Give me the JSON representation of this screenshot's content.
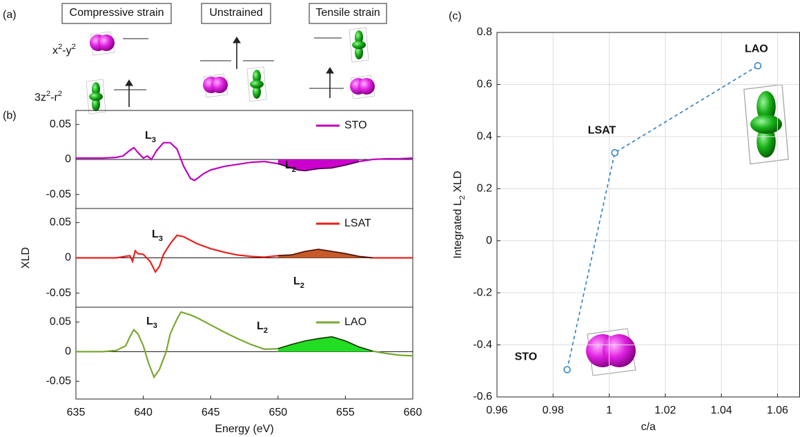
{
  "panel_labels": [
    "(a)",
    "(b)",
    "(c)"
  ],
  "schematic": {
    "boxes": [
      "Compressive strain",
      "Unstrained",
      "Tensile strain"
    ],
    "orbital_labels": [
      {
        "text": "x",
        "sup": "2",
        "tail": "-y",
        "sup2": "2"
      },
      {
        "text": "3z",
        "sup": "2",
        "tail": "-r",
        "sup2": "2"
      }
    ]
  },
  "chart_data": [
    {
      "type": "line",
      "xlim": [
        635,
        660
      ],
      "ylim": [
        -0.07,
        0.07
      ],
      "yticks": [
        -0.05,
        0,
        0.05
      ],
      "zero_line": true,
      "annotations": [
        {
          "text": "L",
          "sub": "3"
        },
        {
          "text": "L",
          "sub": "2"
        }
      ],
      "shade": {
        "xlim": [
          649.5,
          656.5
        ],
        "color": "#cc00cc"
      },
      "series": [
        {
          "name": "STO",
          "color": "#c000c0",
          "x": [
            635,
            636,
            637,
            638,
            638.5,
            639,
            639.3,
            639.6,
            640,
            640.3,
            640.6,
            641,
            641.5,
            642,
            642.5,
            643,
            643.5,
            643.8,
            644.5,
            645,
            646,
            647,
            648,
            649,
            650,
            651,
            651.5,
            652,
            653,
            654,
            655,
            656,
            657,
            658,
            659,
            660
          ],
          "values": [
            0.002,
            0.002,
            0.002,
            0.003,
            0.005,
            0.013,
            0.017,
            0.01,
            0.002,
            0.005,
            0,
            0.013,
            0.024,
            0.024,
            0.015,
            -0.01,
            -0.027,
            -0.03,
            -0.02,
            -0.015,
            -0.01,
            -0.007,
            -0.004,
            -0.003,
            -0.006,
            -0.012,
            -0.015,
            -0.016,
            -0.013,
            -0.012,
            -0.008,
            -0.003,
            0,
            0.001,
            0.001,
            0.002
          ]
        }
      ]
    },
    {
      "type": "line",
      "xlim": [
        635,
        660
      ],
      "ylim": [
        -0.07,
        0.07
      ],
      "yticks": [
        -0.05,
        0,
        0.05
      ],
      "zero_line": true,
      "ylabel": {
        "text": "XLD"
      },
      "annotations": [
        {
          "text": "L",
          "sub": "3"
        },
        {
          "text": "L",
          "sub": "2"
        }
      ],
      "shade": {
        "xlim": [
          649.5,
          657
        ],
        "color": "#c85a28"
      },
      "series": [
        {
          "name": "LSAT",
          "color": "#e8201c",
          "x": [
            635,
            638,
            639,
            639.2,
            639.4,
            639.6,
            640,
            640.5,
            640.9,
            641.2,
            641.5,
            642,
            642.5,
            643,
            643.5,
            644,
            645,
            646,
            647,
            648,
            649,
            650,
            651,
            652,
            653,
            654,
            655,
            656,
            657,
            658,
            660
          ],
          "values": [
            0,
            0,
            0.003,
            -0.005,
            0.01,
            0.006,
            0.005,
            -0.005,
            -0.02,
            -0.012,
            0.005,
            0.02,
            0.032,
            0.03,
            0.025,
            0.02,
            0.013,
            0.008,
            0.004,
            0.002,
            0.001,
            0.003,
            0.004,
            0.009,
            0.012,
            0.009,
            0.006,
            0.002,
            0,
            0,
            0
          ]
        }
      ]
    },
    {
      "type": "line",
      "xlim": [
        635,
        660
      ],
      "ylim": [
        -0.08,
        0.075
      ],
      "yticks": [
        -0.05,
        0,
        0.05
      ],
      "xticks": [
        635,
        640,
        645,
        650,
        655,
        660
      ],
      "zero_line": true,
      "xlabel": "Energy (eV)",
      "annotations": [
        {
          "text": "L",
          "sub": "3"
        },
        {
          "text": "L",
          "sub": "2"
        }
      ],
      "shade": {
        "xlim": [
          649.5,
          657
        ],
        "color": "#22dd22"
      },
      "series": [
        {
          "name": "LAO",
          "color": "#78a832",
          "x": [
            635,
            637,
            638,
            638.7,
            639,
            639.3,
            639.6,
            640,
            640.4,
            640.8,
            641.2,
            641.7,
            642,
            642.5,
            642.8,
            643.5,
            644,
            645,
            646,
            647,
            648,
            649,
            650,
            651,
            652,
            653,
            654,
            655,
            656,
            657,
            658,
            659,
            660
          ],
          "values": [
            0,
            0,
            0.002,
            0.01,
            0.025,
            0.037,
            0.03,
            0.01,
            -0.02,
            -0.043,
            -0.03,
            0,
            0.03,
            0.055,
            0.067,
            0.062,
            0.057,
            0.045,
            0.033,
            0.022,
            0.012,
            0.004,
            0.005,
            0.012,
            0.018,
            0.022,
            0.025,
            0.018,
            0.008,
            0.001,
            -0.003,
            -0.006,
            -0.007
          ]
        }
      ]
    },
    {
      "type": "line",
      "xlim": [
        0.96,
        1.0679
      ],
      "ylim": [
        -0.6,
        0.8
      ],
      "grid": true,
      "dashed": true,
      "markers": true,
      "xticks": [
        0.96,
        0.98,
        1,
        1.02,
        1.04,
        1.06
      ],
      "yticks": [
        -0.6,
        -0.4,
        -0.2,
        0,
        0.2,
        0.4,
        0.6,
        0.8
      ],
      "xlabel": "c/a",
      "ylabel": {
        "text": "Integrated L",
        "sub": "2",
        "tail": " XLD"
      },
      "series": [
        {
          "color": "#2a7fc0",
          "x": [
            0.985,
            1.002,
            1.053
          ],
          "values": [
            -0.495,
            0.338,
            0.672
          ],
          "point_labels": [
            "STO",
            "LSAT",
            "LAO"
          ]
        }
      ]
    }
  ]
}
